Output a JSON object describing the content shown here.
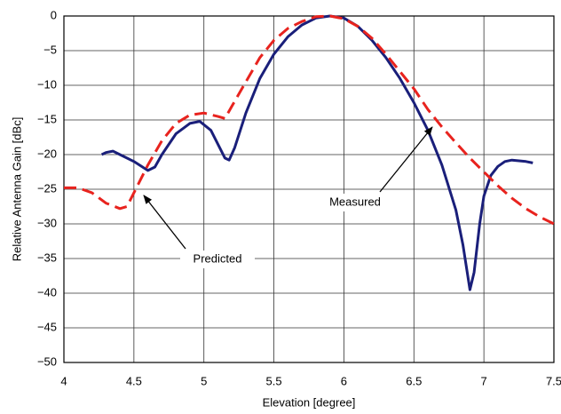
{
  "chart_data": {
    "type": "line",
    "xlabel": "Elevation [degree]",
    "ylabel": "Relative Antenna Gain [dBc]",
    "xlim": [
      4,
      7.5
    ],
    "xticks": [
      4,
      4.5,
      5,
      5.5,
      6,
      6.5,
      7,
      7.5
    ],
    "ylim": [
      -50,
      0
    ],
    "yticks": [
      {
        "value": -50,
        "label": "−50"
      },
      {
        "value": -45,
        "label": "−45"
      },
      {
        "value": -40,
        "label": "−40"
      },
      {
        "value": -35,
        "label": "−35"
      },
      {
        "value": -30,
        "label": "−30"
      },
      {
        "value": -25,
        "label": "−25"
      },
      {
        "value": -20,
        "label": "−20"
      },
      {
        "value": -15,
        "label": "−15"
      },
      {
        "value": -10,
        "label": "−10"
      },
      {
        "value": -5,
        "label": "−5"
      },
      0
    ],
    "grid": true,
    "series": [
      {
        "name": "Measured",
        "color": "#1a1f7a",
        "dash": false,
        "x": [
          4.27,
          4.3,
          4.35,
          4.4,
          4.5,
          4.6,
          4.65,
          4.7,
          4.8,
          4.9,
          4.97,
          5.05,
          5.1,
          5.15,
          5.18,
          5.22,
          5.3,
          5.4,
          5.5,
          5.6,
          5.7,
          5.8,
          5.9,
          6.0,
          6.1,
          6.2,
          6.3,
          6.4,
          6.5,
          6.6,
          6.7,
          6.8,
          6.85,
          6.9,
          6.93,
          6.97,
          7.0,
          7.05,
          7.1,
          7.15,
          7.2,
          7.3,
          7.35
        ],
        "values": [
          -20,
          -19.7,
          -19.5,
          -20,
          -21,
          -22.3,
          -21.8,
          -20,
          -17,
          -15.5,
          -15.2,
          -16.5,
          -18.5,
          -20.5,
          -20.8,
          -19,
          -14,
          -9,
          -5.5,
          -3,
          -1.3,
          -0.3,
          0,
          -0.3,
          -1.5,
          -3.5,
          -6,
          -9,
          -12.5,
          -16.5,
          -21.5,
          -28,
          -33,
          -39.5,
          -37,
          -30,
          -26,
          -23,
          -21.7,
          -21,
          -20.8,
          -21,
          -21.2
        ]
      },
      {
        "name": "Predicted",
        "color": "#e8231e",
        "dash": true,
        "x": [
          4.0,
          4.1,
          4.2,
          4.3,
          4.4,
          4.45,
          4.5,
          4.6,
          4.7,
          4.8,
          4.9,
          5.0,
          5.1,
          5.15,
          5.2,
          5.3,
          5.4,
          5.5,
          5.6,
          5.7,
          5.8,
          5.9,
          6.0,
          6.1,
          6.2,
          6.3,
          6.4,
          6.5,
          6.6,
          6.7,
          6.8,
          6.9,
          7.0,
          7.1,
          7.2,
          7.3,
          7.4,
          7.5
        ],
        "values": [
          -24.8,
          -24.8,
          -25.5,
          -27,
          -27.8,
          -27.5,
          -25.5,
          -21.5,
          -18,
          -15.5,
          -14.3,
          -14,
          -14.5,
          -14.8,
          -13,
          -9.5,
          -6,
          -3.5,
          -1.8,
          -0.8,
          -0.1,
          0,
          -0.4,
          -1.5,
          -3.2,
          -5.5,
          -8,
          -10.5,
          -13.5,
          -16,
          -18.3,
          -20.5,
          -22.5,
          -24.5,
          -26.3,
          -27.8,
          -29,
          -30
        ]
      }
    ]
  }
}
